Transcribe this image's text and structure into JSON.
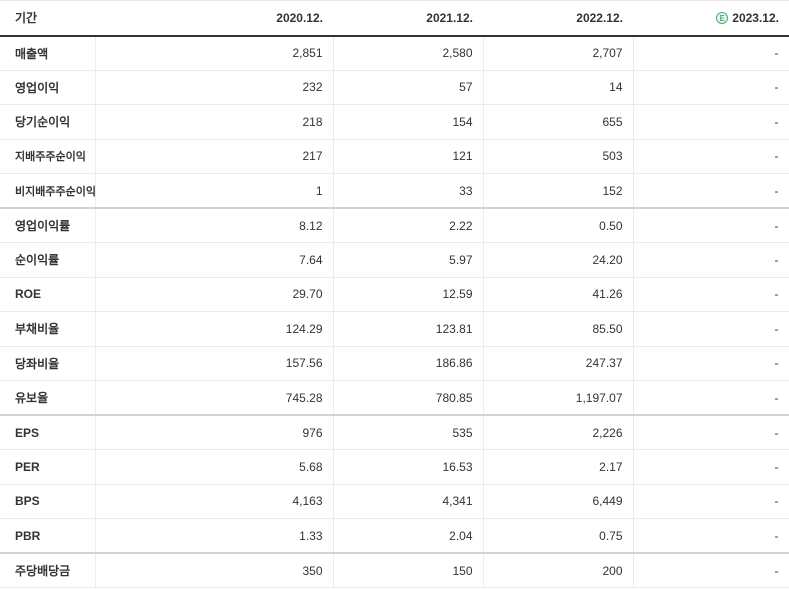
{
  "colors": {
    "accent_green": "#47ab74",
    "text": "#333333",
    "row_border": "#ececec",
    "group_border": "#d2d2d2",
    "header_border": "#333333"
  },
  "table": {
    "period_label": "기간",
    "columns": [
      "2020.12.",
      "2021.12.",
      "2022.12.",
      "2023.12."
    ],
    "estimate_column_index": 3,
    "estimate_icon_letter": "E",
    "rows": [
      {
        "label": "매출액",
        "sub": false,
        "group_end": false,
        "values": [
          "2,851",
          "2,580",
          "2,707",
          "-"
        ]
      },
      {
        "label": "영업이익",
        "sub": false,
        "group_end": false,
        "values": [
          "232",
          "57",
          "14",
          "-"
        ]
      },
      {
        "label": "당기순이익",
        "sub": false,
        "group_end": false,
        "values": [
          "218",
          "154",
          "655",
          "-"
        ]
      },
      {
        "label": "지배주주순이익",
        "sub": true,
        "group_end": false,
        "values": [
          "217",
          "121",
          "503",
          "-"
        ]
      },
      {
        "label": "비지배주주순이익",
        "sub": true,
        "group_end": true,
        "values": [
          "1",
          "33",
          "152",
          "-"
        ]
      },
      {
        "label": "영업이익률",
        "sub": false,
        "group_end": false,
        "values": [
          "8.12",
          "2.22",
          "0.50",
          "-"
        ]
      },
      {
        "label": "순이익률",
        "sub": false,
        "group_end": false,
        "values": [
          "7.64",
          "5.97",
          "24.20",
          "-"
        ]
      },
      {
        "label": "ROE",
        "sub": false,
        "group_end": false,
        "values": [
          "29.70",
          "12.59",
          "41.26",
          "-"
        ]
      },
      {
        "label": "부채비율",
        "sub": false,
        "group_end": false,
        "values": [
          "124.29",
          "123.81",
          "85.50",
          "-"
        ]
      },
      {
        "label": "당좌비율",
        "sub": false,
        "group_end": false,
        "values": [
          "157.56",
          "186.86",
          "247.37",
          "-"
        ]
      },
      {
        "label": "유보율",
        "sub": false,
        "group_end": true,
        "values": [
          "745.28",
          "780.85",
          "1,197.07",
          "-"
        ]
      },
      {
        "label": "EPS",
        "sub": false,
        "group_end": false,
        "values": [
          "976",
          "535",
          "2,226",
          "-"
        ]
      },
      {
        "label": "PER",
        "sub": false,
        "group_end": false,
        "values": [
          "5.68",
          "16.53",
          "2.17",
          "-"
        ]
      },
      {
        "label": "BPS",
        "sub": false,
        "group_end": false,
        "values": [
          "4,163",
          "4,341",
          "6,449",
          "-"
        ]
      },
      {
        "label": "PBR",
        "sub": false,
        "group_end": true,
        "values": [
          "1.33",
          "2.04",
          "0.75",
          "-"
        ]
      },
      {
        "label": "주당배당금",
        "sub": false,
        "group_end": false,
        "values": [
          "350",
          "150",
          "200",
          "-"
        ]
      }
    ]
  }
}
